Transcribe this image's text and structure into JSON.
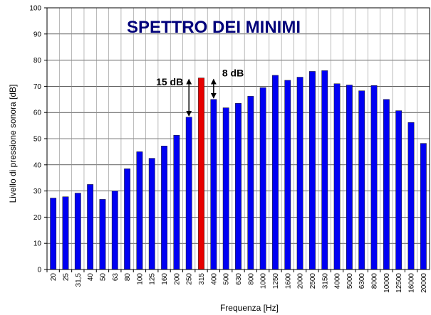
{
  "chart_data": {
    "type": "bar",
    "title": "SPETTRO DEI MINIMI",
    "xlabel": "Frequenza [Hz]",
    "ylabel": "Livello di pressione sonora [dB]",
    "ylim": [
      0,
      100
    ],
    "yticks": [
      "0",
      "10",
      "20",
      "30",
      "40",
      "50",
      "60",
      "70",
      "80",
      "90",
      "100"
    ],
    "grid": true,
    "categories": [
      "20",
      "25",
      "31,5",
      "40",
      "50",
      "63",
      "80",
      "100",
      "125",
      "160",
      "200",
      "250",
      "315",
      "400",
      "500",
      "630",
      "800",
      "1000",
      "1250",
      "1600",
      "2000",
      "2500",
      "3150",
      "4000",
      "5000",
      "6300",
      "8000",
      "10000",
      "12500",
      "16000",
      "20000"
    ],
    "values": [
      27.3,
      27.8,
      29.2,
      32.5,
      26.8,
      30,
      38.5,
      45,
      42.5,
      47.2,
      51.3,
      58.2,
      73.2,
      65,
      61.8,
      63.5,
      66.2,
      69.5,
      74.2,
      72.3,
      73.5,
      75.7,
      76,
      71,
      70.5,
      68.3,
      70.3,
      65,
      60.7,
      56.2,
      48.2
    ],
    "highlight_category": "315",
    "bar_color": "#0000f2",
    "highlight_color": "#e60000",
    "annotations": [
      {
        "text": "15 dB",
        "from_category": "250",
        "to_category": "315"
      },
      {
        "text": "8 dB",
        "from_category": "315",
        "to_category": "400"
      }
    ]
  }
}
